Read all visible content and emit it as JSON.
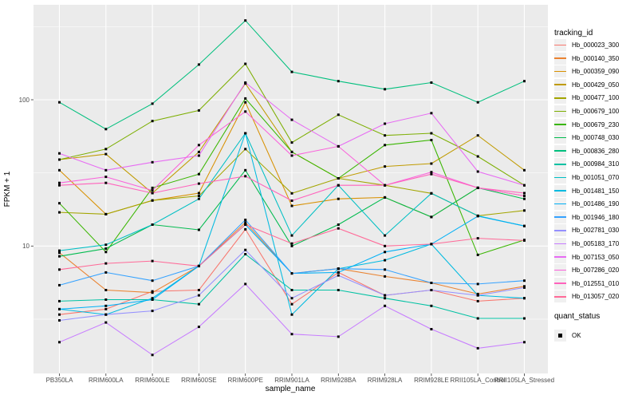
{
  "chart_data": {
    "type": "line",
    "log_scale_y": true,
    "title": "",
    "xlabel": "sample_name",
    "ylabel": "FPKM + 1",
    "y_tick_labels": [
      "100",
      "10"
    ],
    "y_tick_values": [
      100,
      10
    ],
    "ylim": [
      1.35,
      430
    ],
    "grid": true,
    "legend_position": "right",
    "legend_title": "tracking_id",
    "quant_legend_title": "quant_status",
    "quant_status_label": "OK",
    "point_shape": "black-square",
    "panel_color": "#EBEBEB",
    "x": [
      "PB350LA",
      "RRIM600LA",
      "RRIM600LE",
      "RRIM600SE",
      "RRIM600PE",
      "RRIM901LA",
      "RRIM928BA",
      "RRIM928LA",
      "RRIM928LE",
      "RRII105LA_Control",
      "RRII105LA_Stressed"
    ],
    "series": [
      {
        "name": "Hb_000023_300",
        "color": "#F8766D",
        "values": [
          3.4,
          3.7,
          4.9,
          5.0,
          13.0,
          4.0,
          6.6,
          4.6,
          5.0,
          4.2,
          4.4
        ]
      },
      {
        "name": "Hb_000140_350",
        "color": "#EA8331",
        "values": [
          9.0,
          5.0,
          4.8,
          7.3,
          14.5,
          6.5,
          7.0,
          6.2,
          5.6,
          4.7,
          5.3
        ]
      },
      {
        "name": "Hb_000359_090",
        "color": "#D89000",
        "values": [
          33,
          16.5,
          20.5,
          23,
          96,
          18.8,
          21,
          21.5,
          15.8,
          25,
          22
        ]
      },
      {
        "name": "Hb_000429_050",
        "color": "#C09B00",
        "values": [
          39,
          42.5,
          23,
          44,
          129,
          44,
          29,
          35,
          36.6,
          57,
          33
        ]
      },
      {
        "name": "Hb_000477_100",
        "color": "#A3A500",
        "values": [
          17,
          16.5,
          20.5,
          22,
          46,
          22.9,
          29,
          26,
          22.9,
          16.1,
          17.5
        ]
      },
      {
        "name": "Hb_000679_100",
        "color": "#7CAE00",
        "values": [
          39,
          46,
          71.5,
          84.5,
          176,
          51,
          79,
          57,
          59,
          41,
          26
        ]
      },
      {
        "name": "Hb_000679_230",
        "color": "#39B600",
        "values": [
          19.6,
          9.1,
          25,
          31,
          102,
          44,
          29,
          49,
          53,
          8.7,
          11
        ]
      },
      {
        "name": "Hb_000748_030",
        "color": "#00BB4E",
        "values": [
          8.5,
          9.6,
          14,
          12.9,
          33,
          10,
          14,
          21.5,
          15.8,
          25,
          21
        ]
      },
      {
        "name": "Hb_000836_280",
        "color": "#00BF7D",
        "values": [
          96,
          63,
          94,
          174,
          348,
          155,
          134,
          118,
          131,
          96,
          134
        ]
      },
      {
        "name": "Hb_000984_310",
        "color": "#00C1A3",
        "values": [
          4.2,
          4.3,
          4.3,
          4.0,
          8.8,
          5.0,
          5.0,
          4.4,
          3.9,
          3.2,
          3.2
        ]
      },
      {
        "name": "Hb_001051_070",
        "color": "#00BFC4",
        "values": [
          9.3,
          10.2,
          14,
          21,
          59,
          11.8,
          26,
          11.8,
          22.9,
          16.1,
          13.7
        ]
      },
      {
        "name": "Hb_001481_150",
        "color": "#00BAE0",
        "values": [
          3.7,
          3.4,
          4.4,
          7.3,
          59,
          3.4,
          7.0,
          8.0,
          10.3,
          4.6,
          4.4
        ]
      },
      {
        "name": "Hb_001486_190",
        "color": "#00B0F6",
        "values": [
          3.7,
          3.9,
          4.3,
          7.3,
          14,
          6.5,
          6.6,
          9.1,
          10.3,
          16,
          13.7
        ]
      },
      {
        "name": "Hb_001946_180",
        "color": "#35A2FF",
        "values": [
          5.4,
          6.6,
          5.8,
          7.3,
          15.1,
          6.5,
          7.0,
          6.9,
          5.6,
          5.5,
          5.8
        ]
      },
      {
        "name": "Hb_002781_030",
        "color": "#9590FF",
        "values": [
          3.1,
          3.4,
          3.6,
          4.6,
          9.4,
          4.4,
          6.3,
          4.6,
          5.0,
          4.6,
          5.2
        ]
      },
      {
        "name": "Hb_005183_170",
        "color": "#C77CFF",
        "values": [
          2.2,
          3.0,
          1.8,
          2.8,
          5.5,
          2.5,
          2.4,
          3.9,
          2.7,
          2.0,
          2.2
        ]
      },
      {
        "name": "Hb_007153_050",
        "color": "#E76BF3",
        "values": [
          43,
          33,
          37.4,
          41.5,
          131,
          73,
          48,
          68.6,
          81,
          32.3,
          26
        ]
      },
      {
        "name": "Hb_007286_020",
        "color": "#FA62DB",
        "values": [
          27,
          29.7,
          24,
          49,
          83,
          41.5,
          48,
          26,
          32,
          25,
          22
        ]
      },
      {
        "name": "Hb_012551_010",
        "color": "#FF62BC",
        "values": [
          26,
          27,
          23,
          26.7,
          30,
          20.4,
          26,
          26,
          31,
          25,
          23
        ]
      },
      {
        "name": "Hb_013057_020",
        "color": "#FF6A98",
        "values": [
          6.9,
          7.6,
          7.9,
          7.3,
          14,
          10.4,
          13.2,
          10,
          10.3,
          11.3,
          10.9
        ]
      }
    ]
  }
}
